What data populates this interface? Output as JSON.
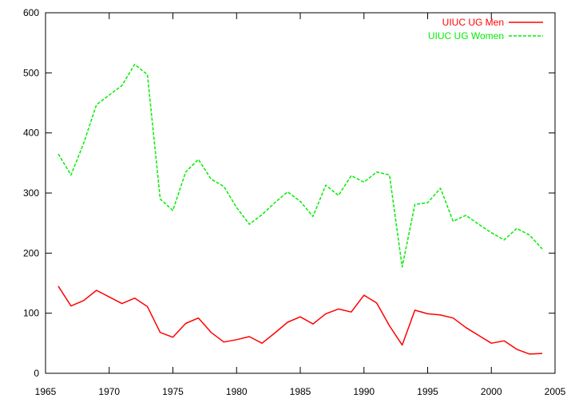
{
  "chart_data": {
    "type": "line",
    "title": "",
    "xlabel": "",
    "ylabel": "",
    "xlim": [
      1965,
      2005
    ],
    "ylim": [
      0,
      600
    ],
    "xticks": [
      1965,
      1970,
      1975,
      1980,
      1985,
      1990,
      1995,
      2000,
      2005
    ],
    "yticks": [
      0,
      100,
      200,
      300,
      400,
      500,
      600
    ],
    "grid": false,
    "legend": "top-right",
    "x": [
      1966,
      1967,
      1968,
      1969,
      1970,
      1971,
      1972,
      1973,
      1974,
      1975,
      1976,
      1977,
      1978,
      1979,
      1980,
      1981,
      1982,
      1983,
      1984,
      1985,
      1986,
      1987,
      1988,
      1989,
      1990,
      1991,
      1992,
      1993,
      1994,
      1995,
      1996,
      1997,
      1998,
      1999,
      2000,
      2001,
      2002,
      2003,
      2004
    ],
    "series": [
      {
        "name": "UIUC UG Men",
        "color": "#ff0000",
        "dash": "solid",
        "values": [
          145,
          112,
          121,
          138,
          127,
          116,
          125,
          111,
          68,
          60,
          83,
          92,
          68,
          52,
          56,
          61,
          50,
          67,
          85,
          94,
          82,
          99,
          107,
          102,
          130,
          117,
          79,
          47,
          105,
          99,
          97,
          92,
          76,
          63,
          50,
          54,
          40,
          32,
          33
        ]
      },
      {
        "name": "UIUC UG Women",
        "color": "#00ee00",
        "dash": "dashed",
        "values": [
          365,
          330,
          383,
          447,
          463,
          479,
          514,
          497,
          290,
          271,
          335,
          356,
          323,
          311,
          276,
          248,
          264,
          284,
          302,
          286,
          261,
          313,
          296,
          329,
          318,
          335,
          330,
          177,
          281,
          284,
          308,
          253,
          263,
          248,
          234,
          222,
          241,
          230,
          207
        ]
      }
    ]
  }
}
